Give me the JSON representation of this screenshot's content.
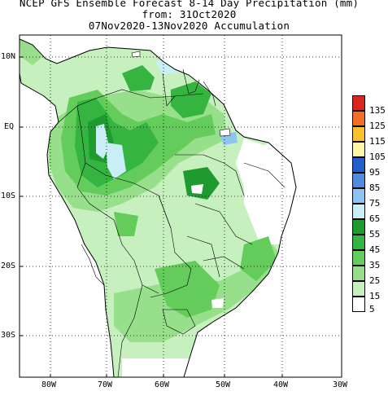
{
  "title": {
    "line1": "NCEP GFS Ensemble Forecast 8-14 Day Precipitation (mm)",
    "line2": "from: 31Oct2020",
    "line3": "07Nov2020-13Nov2020 Accumulation"
  },
  "axes": {
    "lat_labels": [
      "10N",
      "EQ",
      "10S",
      "20S",
      "30S"
    ],
    "lon_labels": [
      "80W",
      "70W",
      "60W",
      "50W",
      "40W",
      "30W"
    ]
  },
  "legend": {
    "levels": [
      "135",
      "125",
      "115",
      "105",
      "95",
      "85",
      "75",
      "65",
      "55",
      "45",
      "35",
      "25",
      "15",
      "5"
    ],
    "colors": [
      "#d7261e",
      "#f46d26",
      "#fbc02d",
      "#fff7a8",
      "#1f61c9",
      "#4f8ce0",
      "#8fc3f0",
      "#c9eef5",
      "#1e9a2f",
      "#35b442",
      "#64cc5b",
      "#97df8b",
      "#c6f0bd",
      "#ffffff"
    ]
  },
  "map": {
    "region": "South America",
    "lon_range": [
      "85W",
      "30W"
    ],
    "lat_range": [
      "35S",
      "13N"
    ],
    "grid": "dotted"
  }
}
